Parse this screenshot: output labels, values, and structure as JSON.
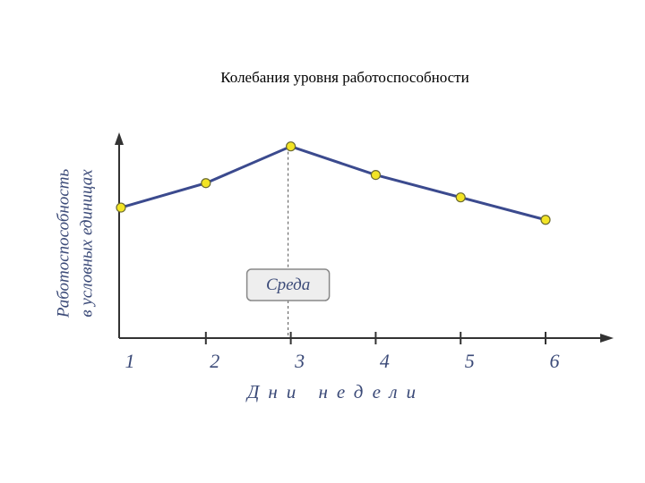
{
  "chart_data": {
    "type": "line",
    "title": "Колебания уровня работоспособности",
    "y_label": [
      "Работоспособность",
      "в условных единицах"
    ],
    "x_label": "Дни недели",
    "annotation": "Среда",
    "categories": [
      "1",
      "2",
      "3",
      "4",
      "5",
      "6"
    ],
    "values": [
      6.4,
      7.6,
      9.4,
      8.0,
      6.9,
      5.8
    ],
    "color": "#3b4a8e",
    "marker_color": "#f2e425",
    "ylim": [
      0,
      10
    ],
    "grid": false
  }
}
